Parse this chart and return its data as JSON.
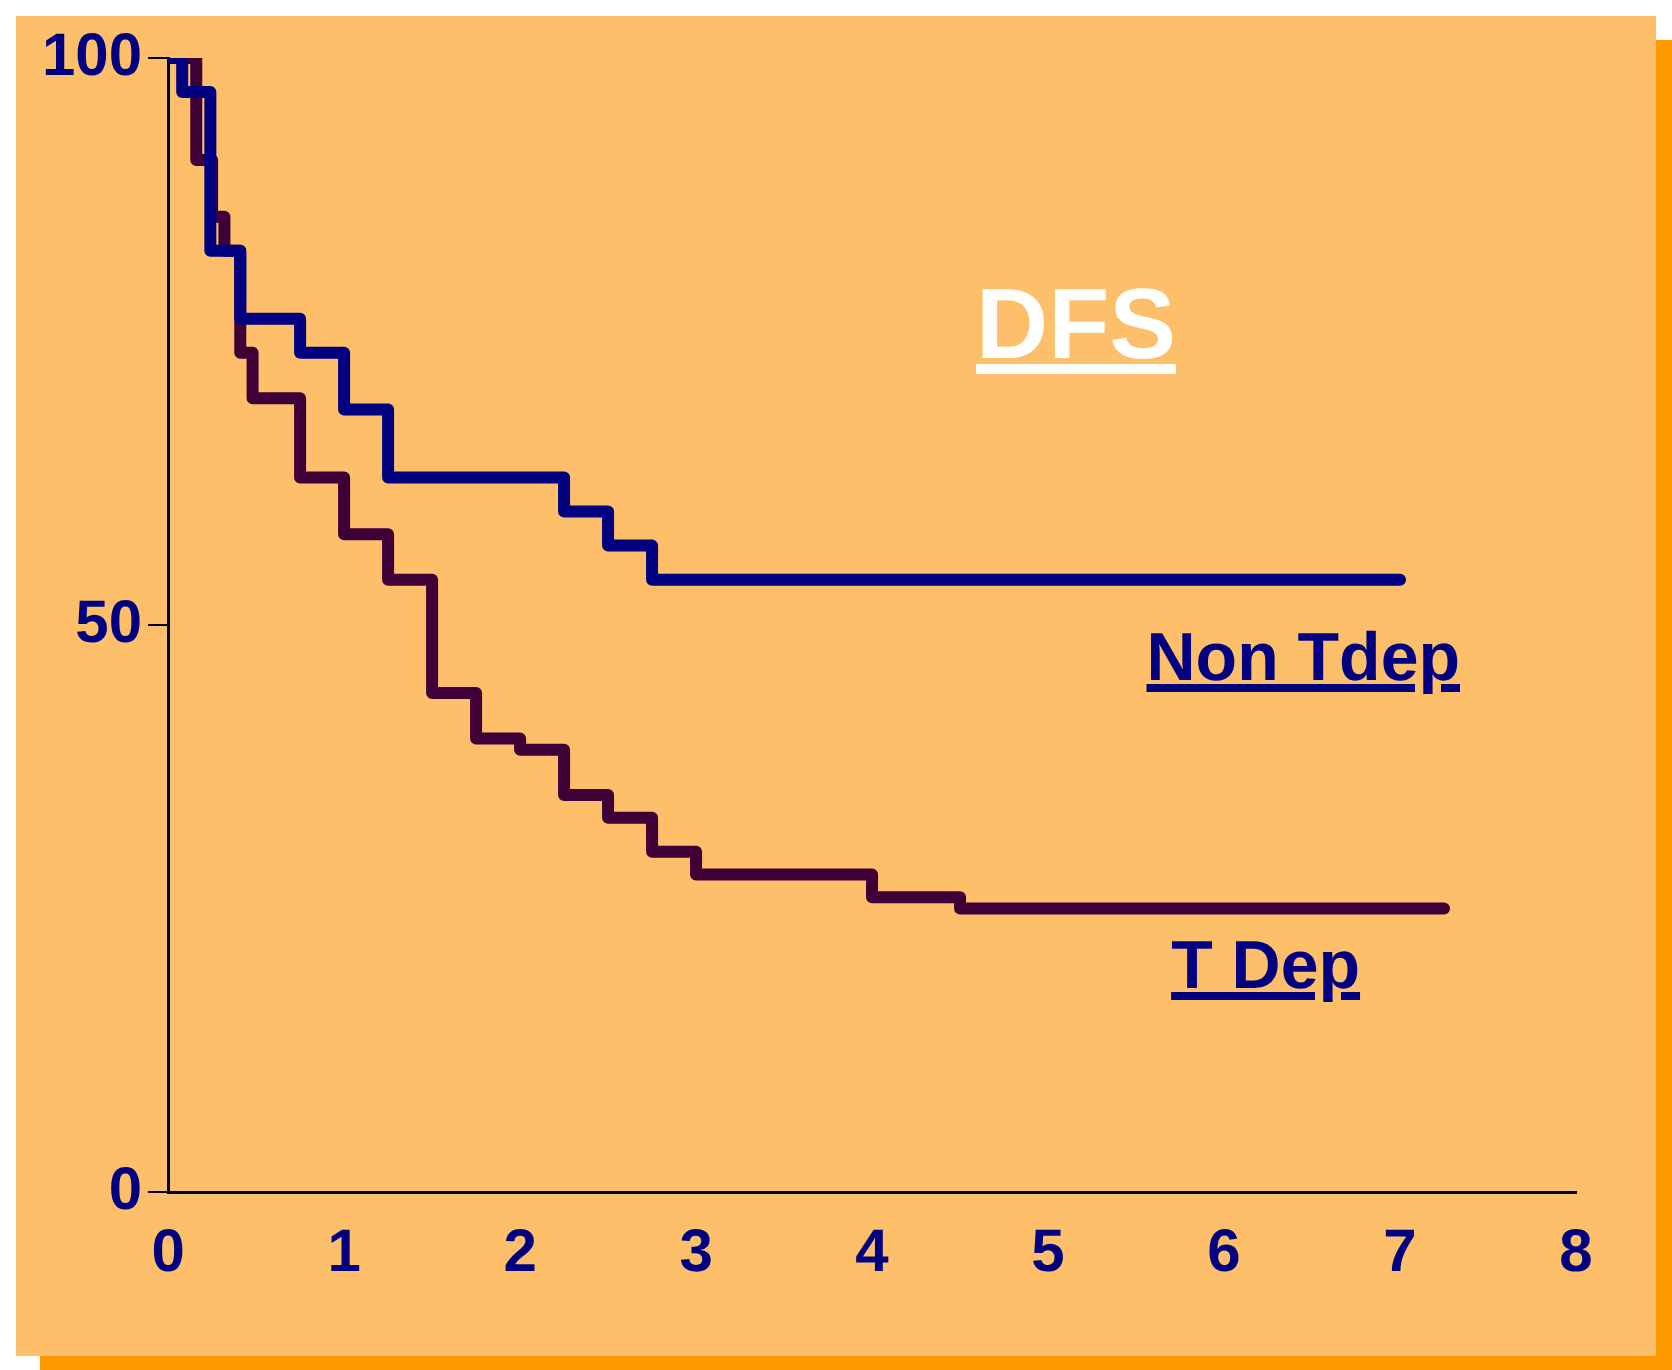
{
  "chart_data": {
    "type": "step",
    "title": "DFS",
    "xlim": [
      0,
      8
    ],
    "xticks": [
      0,
      1,
      2,
      3,
      4,
      5,
      6,
      7,
      8
    ],
    "ylim": [
      0,
      100
    ],
    "yticks": [
      0,
      50,
      100
    ],
    "grid": false,
    "legend": false,
    "marker": "none",
    "series": [
      {
        "name": "Non Tdep",
        "color": "#000080",
        "x": [
          0,
          0.08,
          0.24,
          0.41,
          0.75,
          1.0,
          1.25,
          2.25,
          2.5,
          2.75,
          7.0
        ],
        "values": [
          100,
          97,
          83,
          77,
          74,
          69,
          63,
          60,
          57,
          54,
          54
        ]
      },
      {
        "name": "T Dep",
        "color": "#3f0038",
        "x": [
          0,
          0.16,
          0.25,
          0.32,
          0.41,
          0.48,
          0.75,
          1.0,
          1.25,
          1.5,
          1.75,
          2.0,
          2.25,
          2.5,
          2.75,
          3.0,
          4.0,
          4.5,
          7.25
        ],
        "values": [
          100,
          91,
          86,
          83,
          74,
          70,
          63,
          58,
          54,
          44,
          40,
          39,
          35,
          33,
          30,
          28,
          26,
          25,
          25
        ]
      }
    ]
  }
}
